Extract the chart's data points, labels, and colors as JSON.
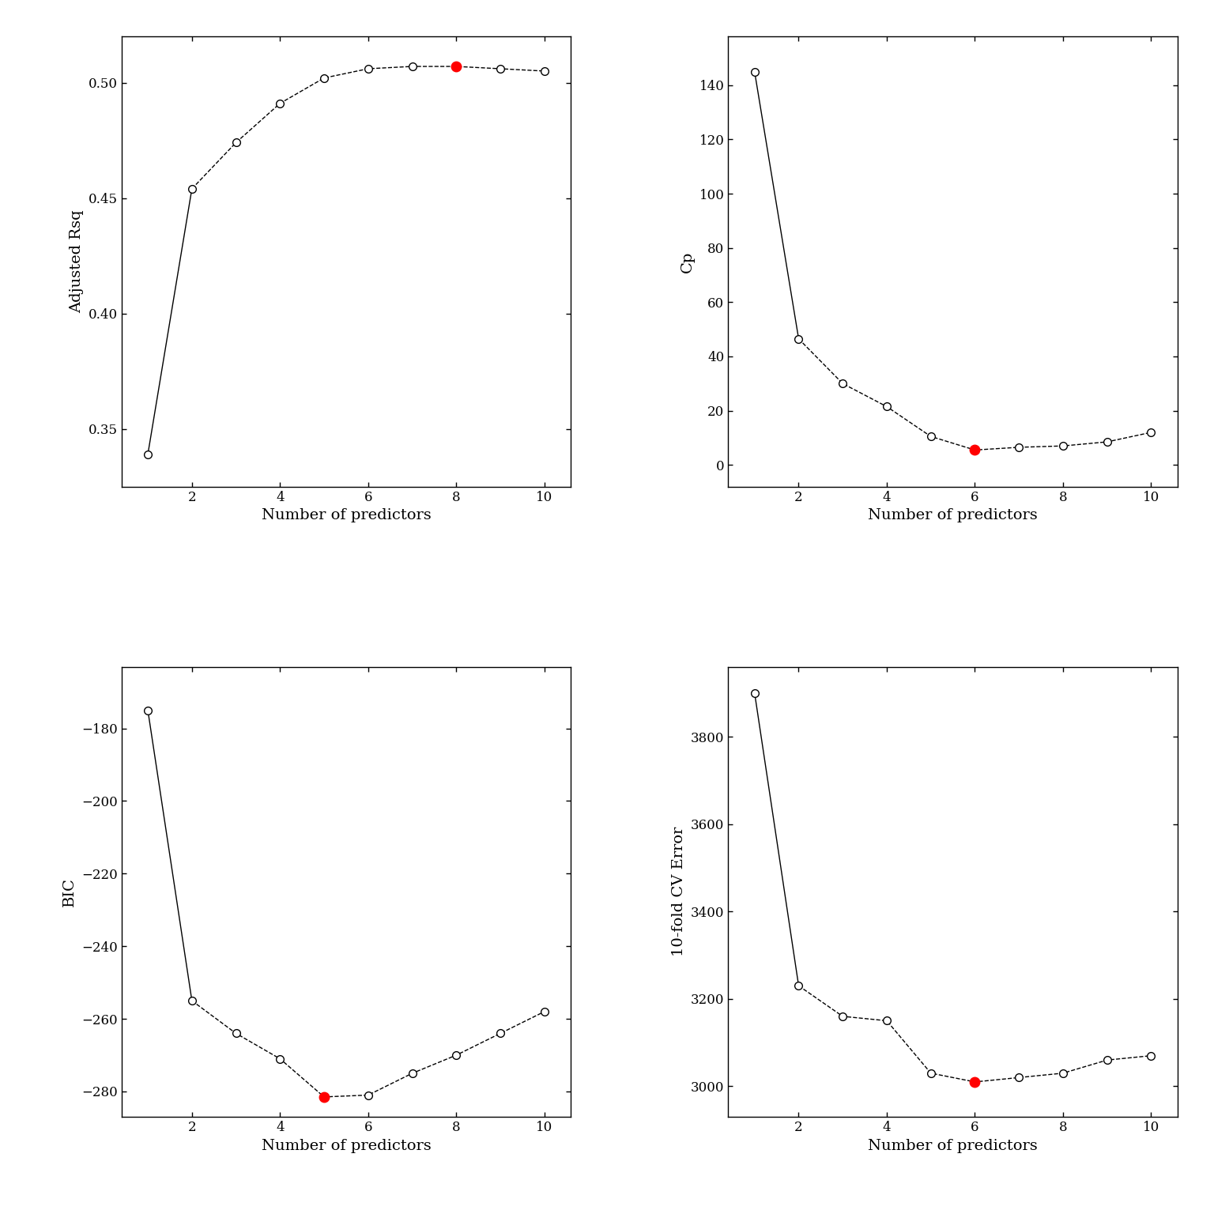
{
  "x": [
    1,
    2,
    3,
    4,
    5,
    6,
    7,
    8,
    9,
    10
  ],
  "adj_rsq": [
    0.339,
    0.454,
    0.474,
    0.491,
    0.502,
    0.506,
    0.507,
    0.507,
    0.506,
    0.505
  ],
  "adj_rsq_red_idx": 7,
  "cp": [
    145.0,
    46.5,
    30.0,
    21.5,
    10.5,
    5.5,
    6.5,
    7.0,
    8.5,
    12.0
  ],
  "cp_red_idx": 5,
  "bic": [
    -175.0,
    -255.0,
    -264.0,
    -271.0,
    -281.5,
    -281.0,
    -275.0,
    -270.0,
    -264.0,
    -258.0
  ],
  "bic_red_idx": 4,
  "cv_error": [
    3900.0,
    3230.0,
    3160.0,
    3150.0,
    3030.0,
    3010.0,
    3020.0,
    3030.0,
    3060.0,
    3070.0
  ],
  "cv_red_idx": 5,
  "open_color": "#ffffff",
  "red_color": "#ff0000",
  "line_color": "#000000",
  "marker_edge_color": "#000000",
  "marker_size": 7,
  "red_marker_size": 9,
  "line_width": 1.0,
  "xlabel": "Number of predictors",
  "ylabels": [
    "Adjusted Rsq",
    "Cp",
    "BIC",
    "10-fold CV Error"
  ],
  "fig_bg": "#ffffff",
  "ax_bg": "#ffffff",
  "adj_rsq_ylim": [
    0.325,
    0.52
  ],
  "adj_rsq_yticks": [
    0.35,
    0.4,
    0.45,
    0.5
  ],
  "cp_ylim": [
    -8,
    158
  ],
  "cp_yticks": [
    0,
    20,
    40,
    60,
    80,
    100,
    120,
    140
  ],
  "bic_ylim": [
    -287,
    -163
  ],
  "bic_yticks": [
    -280,
    -260,
    -240,
    -220,
    -200,
    -180
  ],
  "cv_ylim": [
    2930,
    3960
  ],
  "cv_yticks": [
    3000,
    3200,
    3400,
    3600,
    3800
  ],
  "xlim": [
    0.4,
    10.6
  ],
  "xticks": [
    2,
    4,
    6,
    8,
    10
  ]
}
